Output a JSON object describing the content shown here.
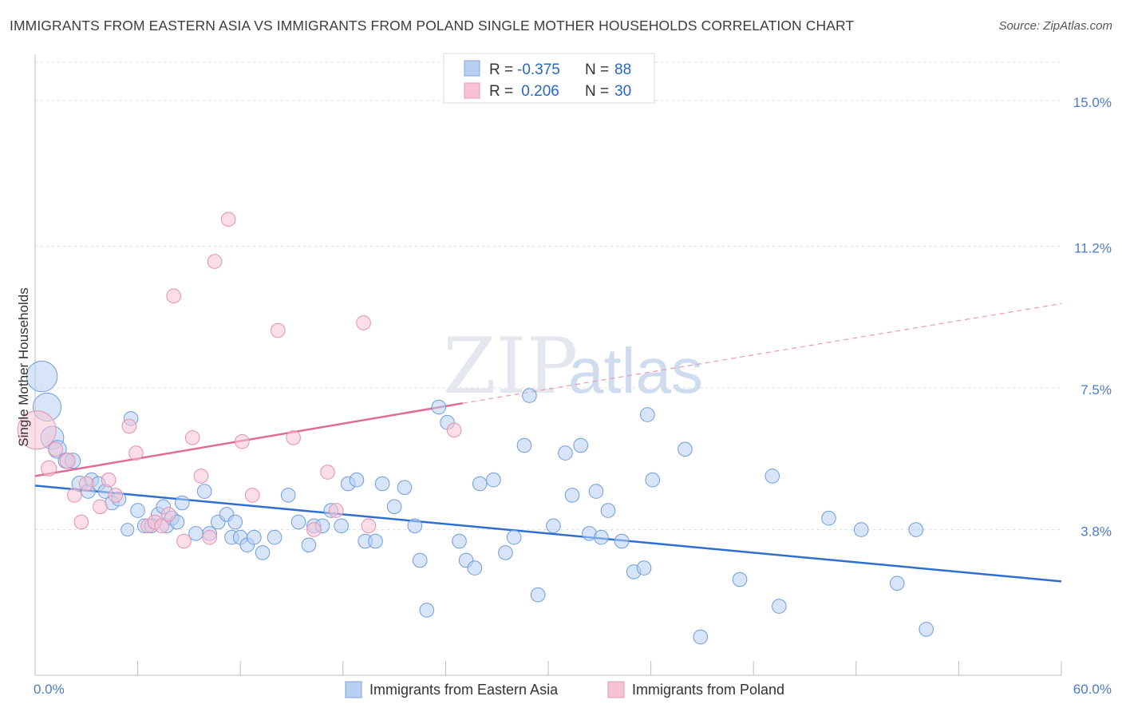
{
  "title": "IMMIGRANTS FROM EASTERN ASIA VS IMMIGRANTS FROM POLAND SINGLE MOTHER HOUSEHOLDS CORRELATION CHART",
  "source": "Source: ZipAtlas.com",
  "watermark": {
    "zip": "ZIP",
    "atlas": "atlas"
  },
  "legend": {
    "r_label": "R =",
    "n_label": "N =",
    "rows": [
      {
        "r": "-0.375",
        "n": "88",
        "color": "#a9c7f0"
      },
      {
        "r": " 0.206",
        "n": "30",
        "color": "#f5b8cb"
      }
    ]
  },
  "colors": {
    "blue": "#2f6fd0",
    "blue_fill": "#b8d0f2",
    "pink": "#e06b93",
    "pink_fill": "#f7c3d3",
    "tick_text": "#4a7cc9"
  },
  "chart_data": {
    "type": "scatter",
    "title": "IMMIGRANTS FROM EASTERN ASIA VS IMMIGRANTS FROM POLAND SINGLE MOTHER HOUSEHOLDS CORRELATION CHART",
    "xlabel": "",
    "ylabel": "Single Mother Households",
    "xlim": [
      0,
      60
    ],
    "ylim": [
      0,
      16
    ],
    "x_tick_labels": [
      "0.0%",
      "60.0%"
    ],
    "y_ticks": [
      3.8,
      7.5,
      11.2,
      15.0
    ],
    "y_tick_labels": [
      "3.8%",
      "7.5%",
      "11.2%",
      "15.0%"
    ],
    "grid": true,
    "legend_position": "top-center",
    "series": [
      {
        "name": "Immigrants from Eastern Asia",
        "color": "#2f6fd0",
        "trend": {
          "x": [
            0,
            60
          ],
          "y": [
            4.95,
            2.45
          ]
        },
        "points": [
          [
            0.4,
            7.8,
            24
          ],
          [
            0.7,
            7.0,
            22
          ],
          [
            1.0,
            6.2,
            18
          ],
          [
            1.3,
            5.9,
            14
          ],
          [
            1.8,
            5.6,
            12
          ],
          [
            2.2,
            5.6,
            12
          ],
          [
            2.6,
            5.0,
            12
          ],
          [
            3.1,
            4.8,
            11
          ],
          [
            3.3,
            5.1,
            11
          ],
          [
            3.7,
            5.0,
            11
          ],
          [
            4.1,
            4.8,
            11
          ],
          [
            4.5,
            4.5,
            11
          ],
          [
            4.9,
            4.6,
            11
          ],
          [
            5.4,
            3.8,
            10
          ],
          [
            5.6,
            6.7,
            11
          ],
          [
            6.0,
            4.3,
            11
          ],
          [
            6.4,
            3.9,
            11
          ],
          [
            6.8,
            3.9,
            11
          ],
          [
            7.2,
            4.2,
            11
          ],
          [
            7.5,
            4.4,
            11
          ],
          [
            7.7,
            3.9,
            11
          ],
          [
            8.0,
            4.1,
            11
          ],
          [
            8.3,
            4.0,
            11
          ],
          [
            8.6,
            4.5,
            11
          ],
          [
            9.4,
            3.7,
            11
          ],
          [
            9.9,
            4.8,
            11
          ],
          [
            10.2,
            3.7,
            11
          ],
          [
            10.7,
            4.0,
            11
          ],
          [
            11.2,
            4.2,
            11
          ],
          [
            11.5,
            3.6,
            11
          ],
          [
            11.7,
            4.0,
            11
          ],
          [
            12.0,
            3.6,
            11
          ],
          [
            12.4,
            3.4,
            11
          ],
          [
            12.8,
            3.6,
            11
          ],
          [
            13.3,
            3.2,
            11
          ],
          [
            14.0,
            3.6,
            11
          ],
          [
            14.8,
            4.7,
            11
          ],
          [
            15.4,
            4.0,
            11
          ],
          [
            16.0,
            3.4,
            11
          ],
          [
            16.3,
            3.9,
            11
          ],
          [
            16.8,
            3.9,
            11
          ],
          [
            17.3,
            4.3,
            11
          ],
          [
            17.9,
            3.9,
            11
          ],
          [
            18.3,
            5.0,
            11
          ],
          [
            18.8,
            5.1,
            11
          ],
          [
            19.3,
            3.5,
            11
          ],
          [
            19.9,
            3.5,
            11
          ],
          [
            20.3,
            5.0,
            11
          ],
          [
            21.0,
            4.4,
            11
          ],
          [
            21.6,
            4.9,
            11
          ],
          [
            22.2,
            3.9,
            11
          ],
          [
            22.5,
            3.0,
            11
          ],
          [
            22.9,
            1.7,
            11
          ],
          [
            23.6,
            7.0,
            11
          ],
          [
            24.1,
            6.6,
            11
          ],
          [
            24.8,
            3.5,
            11
          ],
          [
            25.2,
            3.0,
            11
          ],
          [
            25.7,
            2.8,
            11
          ],
          [
            26.0,
            5.0,
            11
          ],
          [
            26.8,
            5.1,
            11
          ],
          [
            27.5,
            3.2,
            11
          ],
          [
            28.0,
            3.6,
            11
          ],
          [
            28.6,
            6.0,
            11
          ],
          [
            28.9,
            7.3,
            11
          ],
          [
            29.4,
            2.1,
            11
          ],
          [
            30.3,
            3.9,
            11
          ],
          [
            31.0,
            5.8,
            11
          ],
          [
            31.4,
            4.7,
            11
          ],
          [
            31.9,
            6.0,
            11
          ],
          [
            32.4,
            3.7,
            11
          ],
          [
            32.8,
            4.8,
            11
          ],
          [
            33.1,
            3.6,
            11
          ],
          [
            33.5,
            4.3,
            11
          ],
          [
            34.3,
            3.5,
            11
          ],
          [
            35.0,
            2.7,
            11
          ],
          [
            35.6,
            2.8,
            11
          ],
          [
            35.8,
            6.8,
            11
          ],
          [
            36.1,
            5.1,
            11
          ],
          [
            38.0,
            5.9,
            11
          ],
          [
            38.9,
            1.0,
            11
          ],
          [
            41.2,
            2.5,
            11
          ],
          [
            43.1,
            5.2,
            11
          ],
          [
            43.5,
            1.8,
            11
          ],
          [
            46.4,
            4.1,
            11
          ],
          [
            48.3,
            3.8,
            11
          ],
          [
            50.4,
            2.4,
            11
          ],
          [
            51.5,
            3.8,
            11
          ],
          [
            52.1,
            1.2,
            11
          ]
        ]
      },
      {
        "name": "Immigrants from Poland",
        "color": "#e06b93",
        "trend": {
          "x": [
            0,
            25
          ],
          "y": [
            5.2,
            7.1
          ]
        },
        "trend_extension": {
          "x": [
            25,
            60
          ],
          "y": [
            7.1,
            9.7
          ]
        },
        "points": [
          [
            0.1,
            6.4,
            30
          ],
          [
            0.8,
            5.4,
            12
          ],
          [
            1.2,
            5.9,
            11
          ],
          [
            1.9,
            5.6,
            12
          ],
          [
            2.3,
            4.7,
            11
          ],
          [
            2.7,
            4.0,
            11
          ],
          [
            3.0,
            5.0,
            11
          ],
          [
            3.8,
            4.4,
            11
          ],
          [
            4.3,
            5.1,
            11
          ],
          [
            4.7,
            4.7,
            11
          ],
          [
            5.5,
            6.5,
            11
          ],
          [
            5.9,
            5.8,
            11
          ],
          [
            6.6,
            3.9,
            11
          ],
          [
            7.0,
            4.0,
            11
          ],
          [
            7.4,
            3.9,
            11
          ],
          [
            7.8,
            4.2,
            11
          ],
          [
            8.1,
            9.9,
            11
          ],
          [
            8.7,
            3.5,
            11
          ],
          [
            9.2,
            6.2,
            11
          ],
          [
            9.7,
            5.2,
            11
          ],
          [
            10.2,
            3.6,
            11
          ],
          [
            10.5,
            10.8,
            11
          ],
          [
            11.3,
            11.9,
            11
          ],
          [
            12.1,
            6.1,
            11
          ],
          [
            12.7,
            4.7,
            11
          ],
          [
            14.2,
            9.0,
            11
          ],
          [
            15.1,
            6.2,
            11
          ],
          [
            16.3,
            3.8,
            11
          ],
          [
            17.1,
            5.3,
            11
          ],
          [
            17.6,
            4.3,
            11
          ],
          [
            19.2,
            9.2,
            11
          ],
          [
            19.5,
            3.9,
            11
          ],
          [
            24.5,
            6.4,
            11
          ],
          [
            0.0,
            0.0,
            0
          ]
        ]
      }
    ]
  }
}
